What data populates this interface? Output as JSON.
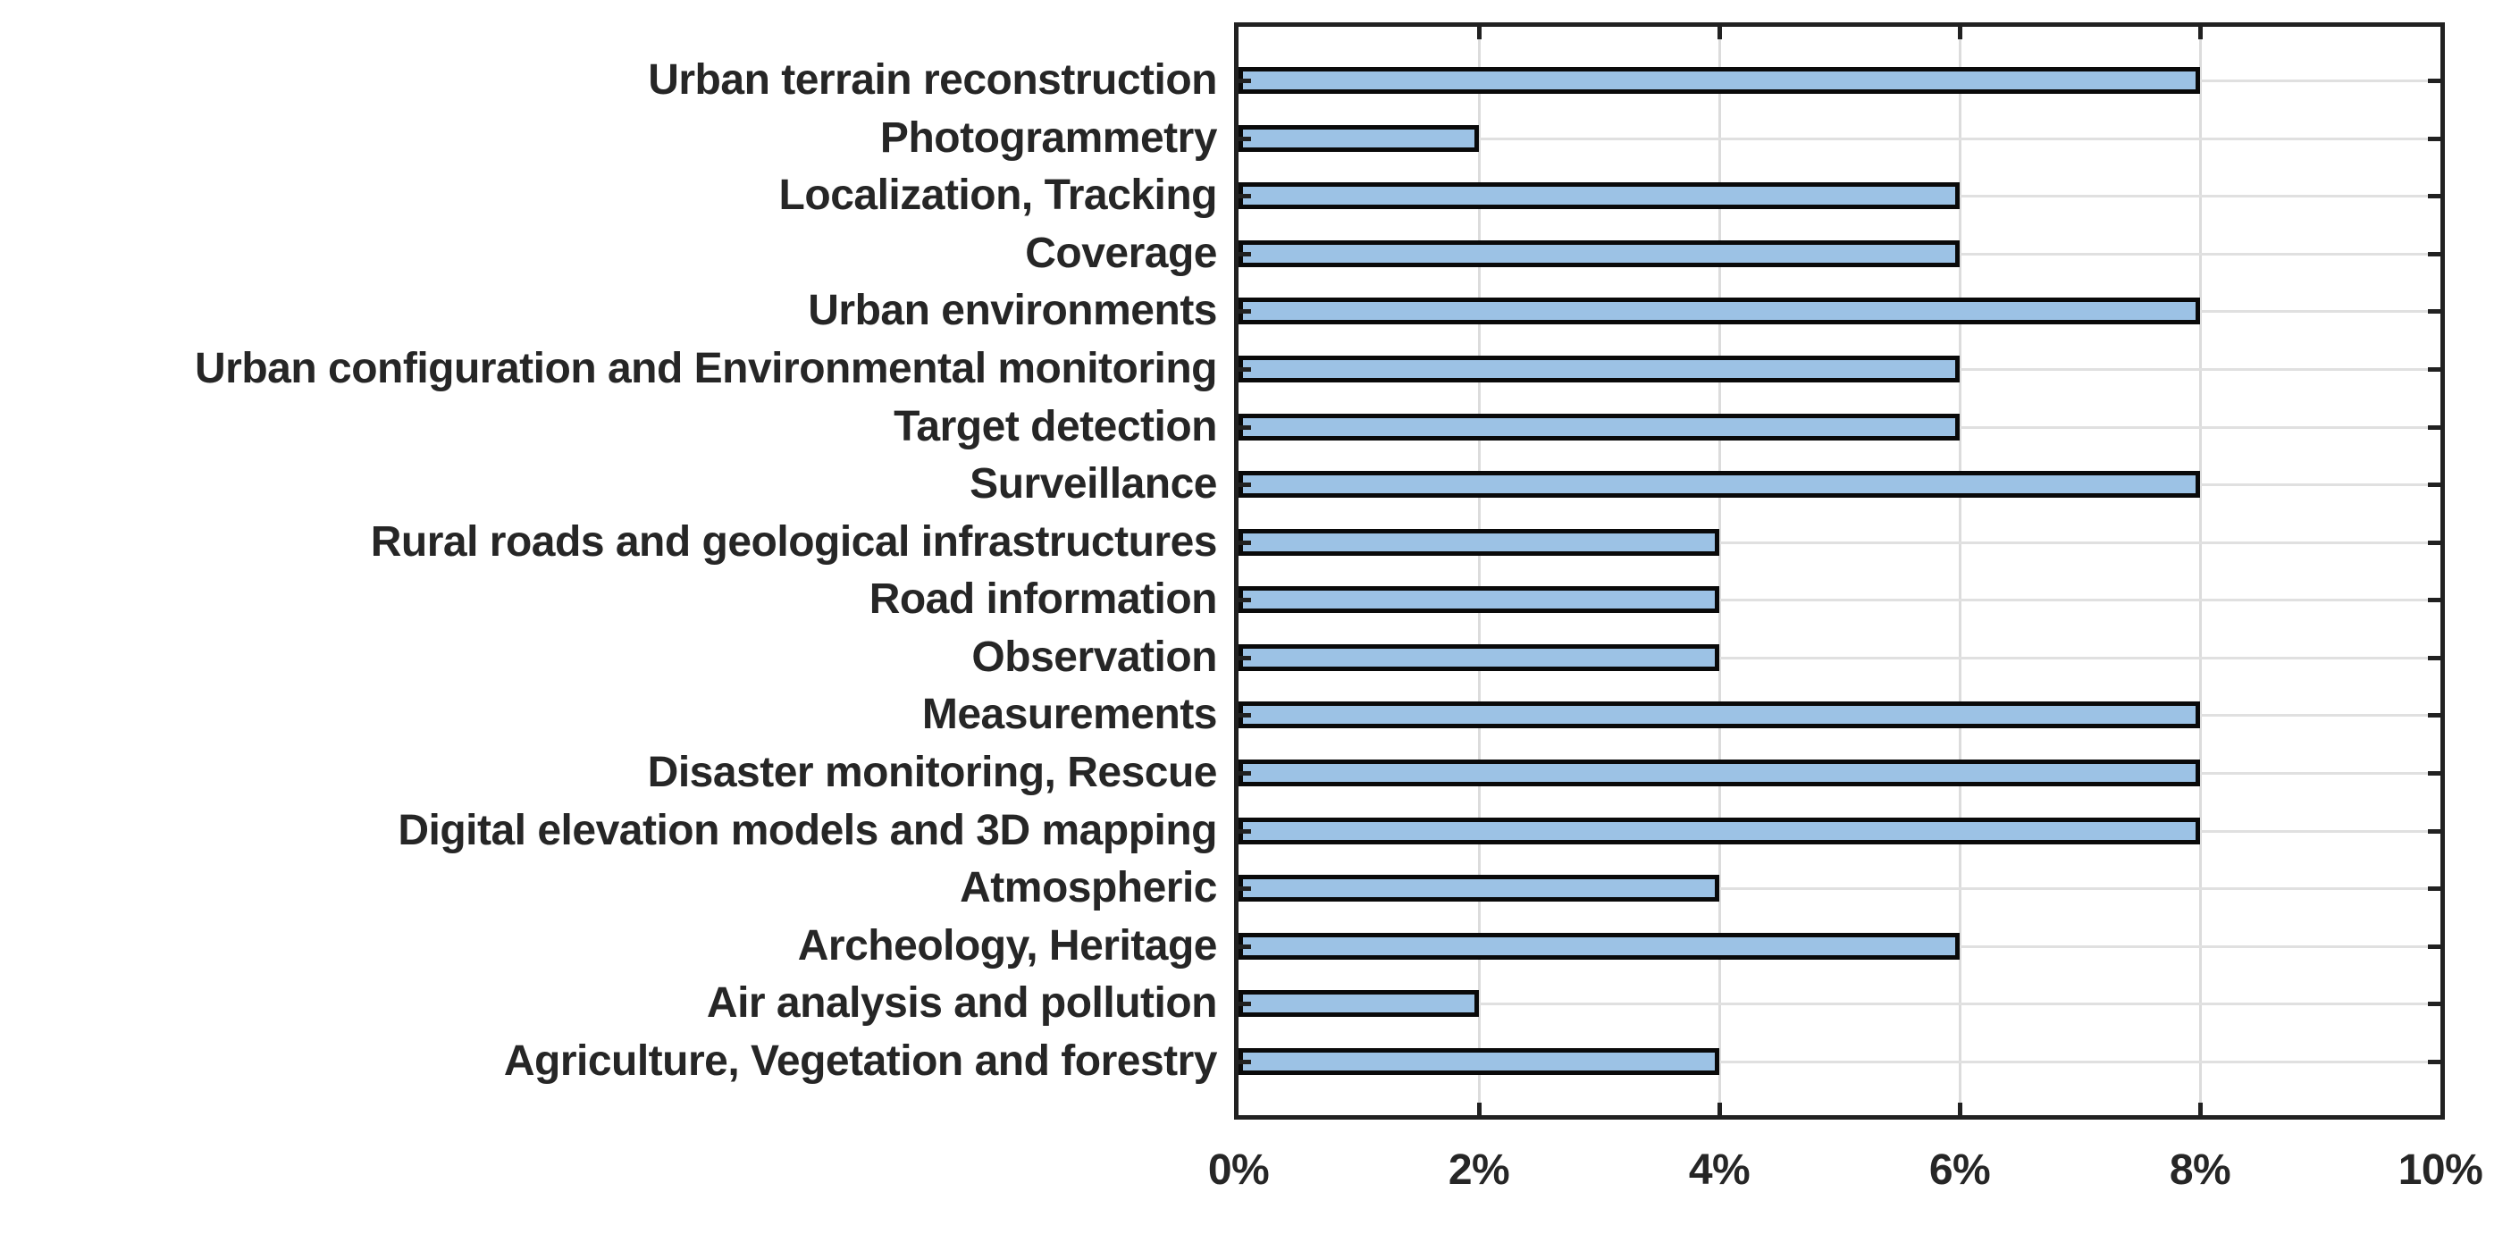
{
  "chart_data": {
    "type": "bar",
    "orientation": "horizontal",
    "title": "",
    "xlabel": "",
    "ylabel": "",
    "xlim": [
      0,
      10
    ],
    "x_tick_labels": [
      "0%",
      "2%",
      "4%",
      "6%",
      "8%",
      "10%"
    ],
    "x_tick_values": [
      0,
      2,
      4,
      6,
      8,
      10
    ],
    "grid": true,
    "legend": null,
    "categories": [
      "Urban terrain reconstruction",
      "Photogrammetry",
      "Localization, Tracking",
      "Coverage",
      "Urban environments",
      "Urban configuration and Environmental monitoring",
      "Target detection",
      "Surveillance",
      "Rural roads and geological infrastructures",
      "Road information",
      "Observation",
      "Measurements",
      "Disaster monitoring, Rescue",
      "Digital elevation models and 3D mapping",
      "Atmospheric",
      "Archeology, Heritage",
      "Air analysis and pollution",
      "Agriculture, Vegetation and forestry"
    ],
    "values": [
      8,
      2,
      6,
      6,
      8,
      6,
      6,
      8,
      4,
      4,
      4,
      8,
      8,
      8,
      4,
      6,
      2,
      4
    ],
    "unit": "%",
    "colors": {
      "bar_fill": "#9CC2E5",
      "bar_edge": "#0A0A0A",
      "grid_vertical": "#DCDCDC",
      "grid_horizontal": "#E0E0E0",
      "axis_box": "#212121",
      "text": "#262626",
      "background": "#FFFFFF"
    }
  }
}
